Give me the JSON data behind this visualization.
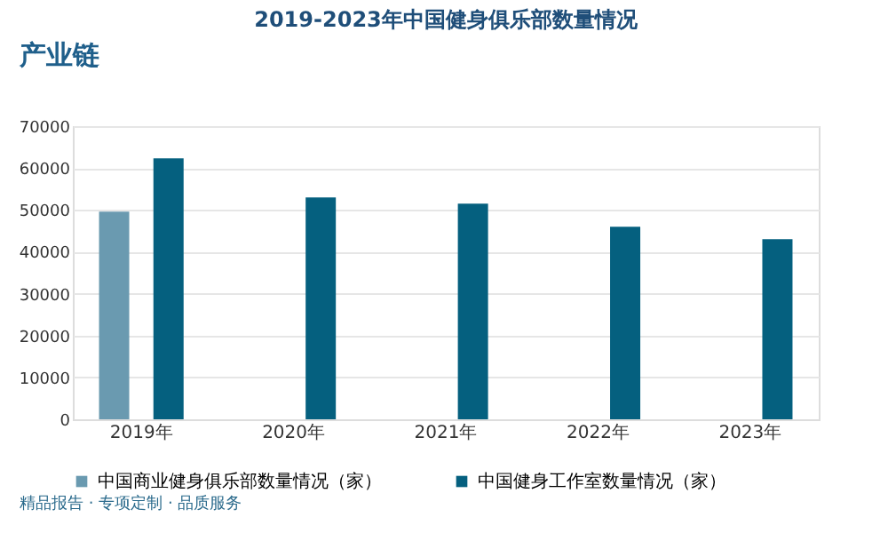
{
  "chart_data": {
    "type": "bar",
    "title": "2019-2023年中国健身俱乐部数量情况",
    "categories": [
      "2019年",
      "2020年",
      "2021年",
      "2022年",
      "2023年"
    ],
    "series": [
      {
        "name": "中国商业健身俱乐部数量情况（家）",
        "color": "#6a9ab0",
        "values": [
          49600,
          null,
          null,
          null,
          null
        ]
      },
      {
        "name": "中国健身工作室数量情况（家）",
        "color": "#05607f",
        "values": [
          62300,
          53000,
          51500,
          46000,
          43000
        ]
      }
    ],
    "ylim": [
      0,
      70000
    ],
    "yticks": [
      0,
      10000,
      20000,
      30000,
      40000,
      50000,
      60000,
      70000
    ],
    "grid": "y",
    "legend": "bottom",
    "annotations": [
      "产业链",
      "精品报告 · 专项定制 · 品质服务"
    ]
  }
}
